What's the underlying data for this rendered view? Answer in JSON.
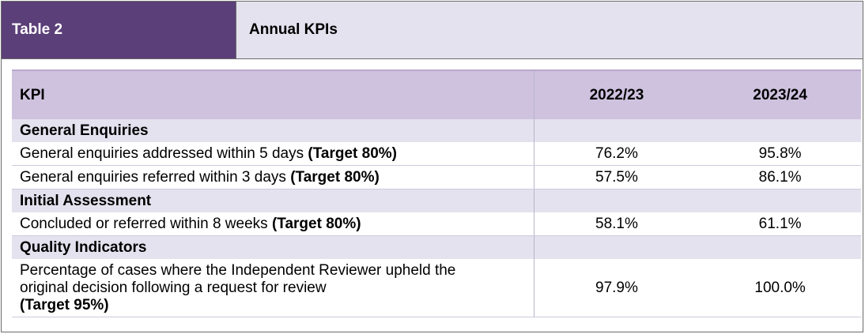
{
  "header": {
    "table_label": "Table 2",
    "title": "Annual KPIs"
  },
  "table": {
    "col_kpi": "KPI",
    "col_year1": "2022/23",
    "col_year2": "2023/24",
    "sections": [
      {
        "title": "General Enquiries",
        "rows": [
          {
            "text": "General enquiries addressed within 5 days ",
            "target": "(Target 80%)",
            "v1": "76.2%",
            "v2": "95.8%"
          },
          {
            "text": "General enquiries referred within 3 days ",
            "target": "(Target 80%)",
            "v1": "57.5%",
            "v2": "86.1%"
          }
        ]
      },
      {
        "title": "Initial Assessment",
        "rows": [
          {
            "text": "Concluded or referred within 8 weeks ",
            "target": "(Target 80%)",
            "v1": "58.1%",
            "v2": "61.1%"
          }
        ]
      },
      {
        "title": "Quality Indicators",
        "rows": [
          {
            "text_line1": "Percentage of cases where the Independent Reviewer upheld the",
            "text_line2": "original decision following a request for review",
            "target": "(Target 95%)",
            "v1": "97.9%",
            "v2": "100.0%"
          }
        ]
      }
    ]
  }
}
